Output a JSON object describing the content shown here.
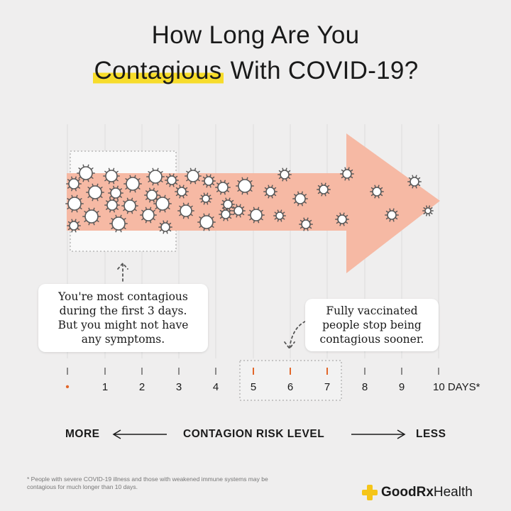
{
  "title": {
    "line1": "How Long Are You",
    "highlight": "Contagious",
    "line2_rest": "With COVID-19?"
  },
  "timeline": {
    "ticks": [
      "•",
      "1",
      "2",
      "3",
      "4",
      "5",
      "6",
      "7",
      "8",
      "9",
      "10 DAYS*"
    ],
    "arrow_color": "#f6b9a4",
    "tick_accent_color": "#e2672a"
  },
  "callouts": {
    "most_contagious": [
      "You're most contagious",
      "during the first 3 days.",
      "But you might not have",
      "any symptoms."
    ],
    "vaccinated": [
      "Fully vaccinated",
      "people stop being",
      "contagious sooner."
    ]
  },
  "risk_level": {
    "more": "MORE",
    "label": "CONTAGION RISK LEVEL",
    "less": "LESS"
  },
  "footnote": "* People with severe COVID-19 illness and those with weakened immune systems may be contagious for much longer than 10 days.",
  "brand": {
    "name_bold": "GoodRx",
    "name_light": "Health",
    "icon": "plus-icon",
    "accent": "#f5c518"
  }
}
